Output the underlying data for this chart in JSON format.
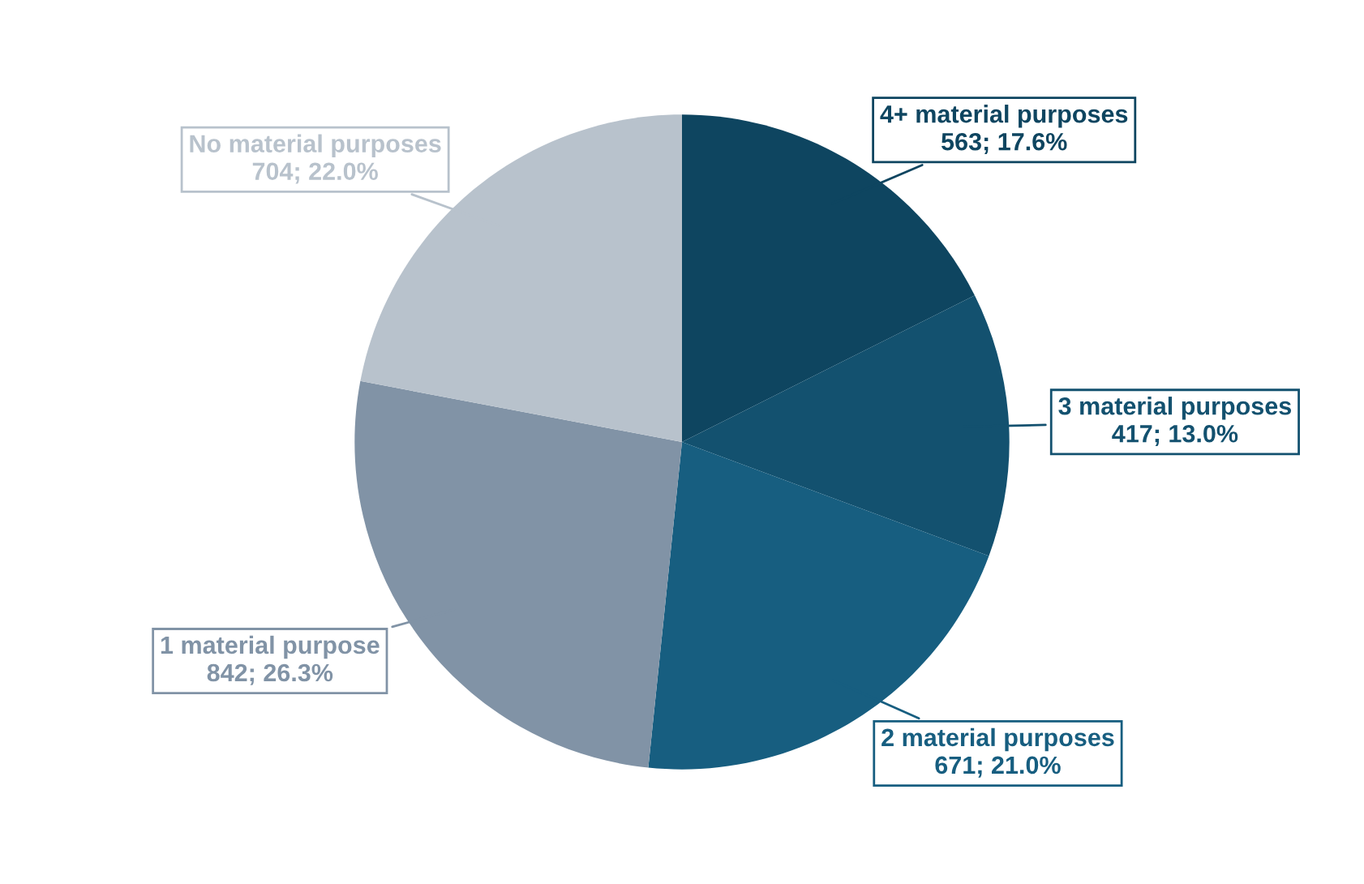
{
  "chart_data": {
    "type": "pie",
    "categories": [
      "4+ material purposes",
      "3 material purposes",
      "2 material purposes",
      "1 material purpose",
      "No material purposes"
    ],
    "values": [
      563,
      417,
      671,
      842,
      704
    ],
    "value_labels": [
      "563; 17.6%",
      "417; 13.0%",
      "671; 21.0%",
      "842; 26.3%",
      "704; 22.0%"
    ],
    "colors": [
      "#0e4560",
      "#13516f",
      "#175e80",
      "#8193a6",
      "#b8c2cc"
    ],
    "legend": false
  }
}
